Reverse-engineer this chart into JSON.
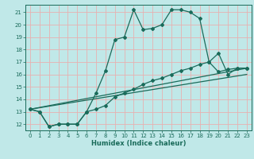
{
  "xlabel": "Humidex (Indice chaleur)",
  "bg_color": "#c0e8e8",
  "grid_color": "#e8b0b0",
  "line_color": "#1a6b5a",
  "xlim": [
    -0.5,
    23.5
  ],
  "ylim": [
    11.5,
    21.6
  ],
  "yticks": [
    12,
    13,
    14,
    15,
    16,
    17,
    18,
    19,
    20,
    21
  ],
  "xticks": [
    0,
    1,
    2,
    3,
    4,
    5,
    6,
    7,
    8,
    9,
    10,
    11,
    12,
    13,
    14,
    15,
    16,
    17,
    18,
    19,
    20,
    21,
    22,
    23
  ],
  "curve1_x": [
    0,
    1,
    2,
    3,
    4,
    5,
    6,
    7,
    8,
    9,
    10,
    11,
    12,
    13,
    14,
    15,
    16,
    17,
    18,
    19,
    20,
    21,
    22,
    23
  ],
  "curve1_y": [
    13.2,
    13.0,
    11.8,
    12.0,
    12.0,
    12.0,
    13.0,
    14.5,
    16.3,
    18.8,
    19.0,
    21.2,
    19.6,
    19.7,
    20.0,
    21.2,
    21.2,
    21.0,
    20.5,
    17.0,
    17.7,
    16.0,
    16.5,
    16.5
  ],
  "curve2_x": [
    0,
    1,
    2,
    3,
    4,
    5,
    6,
    7,
    8,
    9,
    10,
    11,
    12,
    13,
    14,
    15,
    16,
    17,
    18,
    19,
    20,
    21,
    22,
    23
  ],
  "curve2_y": [
    13.2,
    13.0,
    11.8,
    12.0,
    12.0,
    12.0,
    13.0,
    13.2,
    13.5,
    14.2,
    14.5,
    14.8,
    15.2,
    15.5,
    15.7,
    16.0,
    16.3,
    16.5,
    16.8,
    17.0,
    16.2,
    16.4,
    16.5,
    16.5
  ],
  "line1_x": [
    0,
    23
  ],
  "line1_y": [
    13.2,
    16.5
  ],
  "line2_x": [
    0,
    23
  ],
  "line2_y": [
    13.2,
    16.0
  ]
}
